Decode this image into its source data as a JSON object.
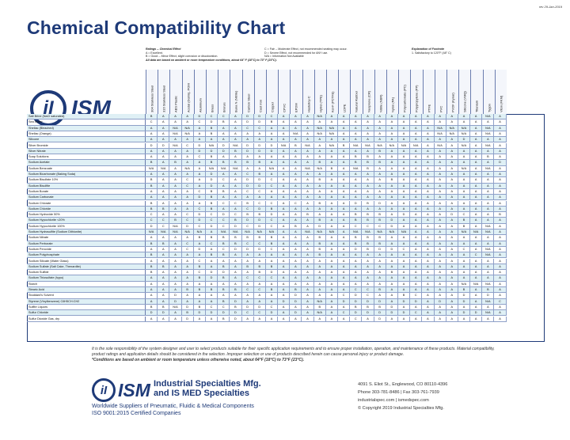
{
  "header": {
    "revision": "rev 29-Jan-2019",
    "title": "Chemical Compatibility Chart"
  },
  "ratings": {
    "title": "Ratings -- Chemical Effect",
    "lines": [
      "A = Excellent.",
      "B = Good -- Minor Effect, slight corrosion or discoloration.",
      "All data are based on ambient or room temperature conditions, about 64° F (18°C) to 73° F (23°C)."
    ],
    "lines2": [
      "C = Fair -- Moderate Effect, not recommended seating may occur.",
      "D = Severe Effect, not recommended for ANY use.",
      "N/A = Information Not Available"
    ]
  },
  "explanation": {
    "title": "Explanation of Footnote",
    "lines": [
      "1. Satisfactory to 120°F (48° C)"
    ]
  },
  "logo": {
    "mark": "iI",
    "text": "ISM"
  },
  "columns": [
    "304 Stainless Steel",
    "316 Stainless Steel",
    "ABS Plastic",
    "Acetal (Delrin), POM",
    "Aluminum",
    "Brass",
    "Bronze",
    "Buna N (Nitrile)",
    "Carbon Steel",
    "Cast Iron",
    "Copper",
    "CPVC",
    "EPDM",
    "Hastelloy-C",
    "Hytrel (TPE)",
    "Kel-F (PCTFE)",
    "LDPE",
    "Natural Rubber",
    "Neoprene (CR)",
    "Nitrile (NBR)",
    "Nylon (PA)",
    "Polycarbonate (PC)",
    "Polypropylene (PP)",
    "PTFE",
    "PVC",
    "PVDF (Kynar)",
    "Silicone (VMQ)",
    "Titanium",
    "Tygon",
    "Viton (FKM)"
  ],
  "rows": [
    {
      "name": "Salt Brine (NaCl saturated)",
      "v": [
        "B",
        "A",
        "A",
        "A",
        "D",
        "C",
        "C",
        "A",
        "D",
        "D",
        "C",
        "A",
        "A",
        "A",
        "N/A",
        "A",
        "A",
        "A",
        "A",
        "A",
        "A",
        "A",
        "A",
        "A",
        "A",
        "A",
        "A",
        "A",
        "N/A",
        "A"
      ]
    },
    {
      "name": "Sea Water",
      "v": [
        "C",
        "A",
        "A",
        "A",
        "C",
        "D",
        "B",
        "A",
        "D",
        "D",
        "B",
        "A",
        "A",
        "A",
        "A",
        "A",
        "A",
        "A",
        "A",
        "A",
        "A",
        "A",
        "A",
        "A",
        "A",
        "A",
        "A",
        "A",
        "A",
        "A"
      ]
    },
    {
      "name": "Shellac (Bleached)",
      "v": [
        "A",
        "A",
        "N/A",
        "N/A",
        "A",
        "B",
        "A",
        "A",
        "C",
        "C",
        "A",
        "A",
        "A",
        "A",
        "N/A",
        "N/A",
        "A",
        "A",
        "A",
        "A",
        "A",
        "A",
        "A",
        "A",
        "N/A",
        "N/A",
        "N/A",
        "A",
        "N/A",
        "A"
      ]
    },
    {
      "name": "Shellac (Orange)",
      "v": [
        "A",
        "A",
        "N/A",
        "N/A",
        "A",
        "B",
        "A",
        "A",
        "A",
        "A",
        "A",
        "A",
        "N/A",
        "A",
        "N/A",
        "N/A",
        "A",
        "A",
        "A",
        "A",
        "A",
        "A",
        "A",
        "A",
        "N/A",
        "N/A",
        "N/A",
        "A",
        "N/A",
        "A"
      ]
    },
    {
      "name": "Silicone",
      "v": [
        "A",
        "A",
        "A",
        "A",
        "A",
        "A",
        "A",
        "A",
        "A",
        "A",
        "A",
        "A",
        "A",
        "A",
        "A",
        "A",
        "A",
        "A",
        "A",
        "A",
        "A",
        "A",
        "A",
        "A",
        "A",
        "A",
        "D",
        "A",
        "A",
        "A"
      ]
    },
    {
      "name": "Silver Bromide",
      "v": [
        "D",
        "D",
        "N/A",
        "C",
        "D",
        "N/A",
        "D",
        "N/A",
        "D",
        "D",
        "D",
        "N/A",
        "B",
        "N/A",
        "A",
        "N/A",
        "B",
        "N/A",
        "N/A",
        "N/A",
        "N/A",
        "N/A",
        "N/A",
        "A",
        "N/A",
        "A",
        "N/A",
        "A",
        "N/A",
        "A"
      ]
    },
    {
      "name": "Silver Nitrate",
      "v": [
        "A",
        "A",
        "A",
        "A",
        "D",
        "D",
        "D",
        "B",
        "D",
        "D",
        "D",
        "A",
        "A",
        "A",
        "A",
        "A",
        "A",
        "A",
        "A",
        "B",
        "A",
        "A",
        "A",
        "A",
        "A",
        "A",
        "A",
        "A",
        "A",
        "A"
      ]
    },
    {
      "name": "Soap Solutions",
      "v": [
        "A",
        "A",
        "A",
        "A",
        "C",
        "B",
        "A",
        "A",
        "A",
        "A",
        "A",
        "A",
        "A",
        "A",
        "A",
        "A",
        "A",
        "B",
        "B",
        "A",
        "A",
        "A",
        "A",
        "A",
        "A",
        "A",
        "A",
        "A",
        "B",
        "A"
      ]
    },
    {
      "name": "Sodium Acetate",
      "v": [
        "B",
        "A",
        "B",
        "A",
        "A",
        "B",
        "B",
        "B",
        "B",
        "B",
        "A",
        "A",
        "A",
        "A",
        "B",
        "A",
        "A",
        "B",
        "B",
        "B",
        "A",
        "A",
        "A",
        "A",
        "A",
        "A",
        "A",
        "A",
        "A",
        "D"
      ]
    },
    {
      "name": "Sodium Benzoate",
      "v": [
        "N/A",
        "N/A",
        "A",
        "N/A",
        "A",
        "N/A",
        "N/A",
        "N/A",
        "A",
        "A",
        "N/A",
        "A",
        "A",
        "N/A",
        "N/A",
        "B",
        "A",
        "N/A",
        "B",
        "A",
        "A",
        "A",
        "A",
        "A",
        "A",
        "A",
        "N/A",
        "A",
        "N/A",
        "A"
      ]
    },
    {
      "name": "Sodium Bicarbonate (Baking Soda)",
      "v": [
        "A",
        "A",
        "A",
        "A",
        "A",
        "D",
        "A",
        "A",
        "C",
        "B",
        "A",
        "A",
        "A",
        "A",
        "A",
        "A",
        "A",
        "A",
        "A",
        "A",
        "A",
        "A",
        "A",
        "A",
        "A",
        "A",
        "A",
        "A",
        "A",
        "A"
      ]
    },
    {
      "name": "Sodium Bisulfate 10%",
      "v": [
        "B",
        "A",
        "A",
        "C",
        "A",
        "D",
        "C",
        "A",
        "D",
        "D",
        "C",
        "A",
        "A",
        "A",
        "B",
        "A",
        "A",
        "A",
        "A",
        "A",
        "B",
        "A",
        "A",
        "A",
        "A",
        "A",
        "A",
        "A",
        "A",
        "A"
      ]
    },
    {
      "name": "Sodium Bisulfite",
      "v": [
        "B",
        "A",
        "A",
        "C",
        "A",
        "D",
        "A",
        "A",
        "D",
        "D",
        "C",
        "A",
        "A",
        "A",
        "A",
        "A",
        "A",
        "A",
        "A",
        "A",
        "A",
        "A",
        "A",
        "A",
        "A",
        "A",
        "A",
        "A",
        "A",
        "A"
      ]
    },
    {
      "name": "Sodium Borate",
      "v": [
        "A",
        "A",
        "A",
        "A",
        "C",
        "B",
        "B",
        "A",
        "C",
        "C",
        "A",
        "A",
        "A",
        "A",
        "A",
        "A",
        "A",
        "A",
        "A",
        "A",
        "A",
        "A",
        "A",
        "A",
        "A",
        "A",
        "A",
        "A",
        "A",
        "A"
      ]
    },
    {
      "name": "Sodium Carbonate",
      "v": [
        "A",
        "A",
        "A",
        "A",
        "D",
        "B",
        "A",
        "A",
        "A",
        "A",
        "A",
        "A",
        "A",
        "A",
        "A",
        "A",
        "A",
        "A",
        "A",
        "A",
        "A",
        "A",
        "A",
        "A",
        "A",
        "A",
        "A",
        "A",
        "A",
        "A"
      ]
    },
    {
      "name": "Sodium Chlorate",
      "v": [
        "B",
        "A",
        "A",
        "A",
        "A",
        "B",
        "C",
        "C",
        "B",
        "C",
        "C",
        "A",
        "C",
        "A",
        "B",
        "A",
        "A",
        "D",
        "B",
        "D",
        "A",
        "A",
        "A",
        "A",
        "A",
        "A",
        "A",
        "A",
        "A",
        "A"
      ]
    },
    {
      "name": "Sodium Chloride",
      "v": [
        "B",
        "B",
        "A",
        "A",
        "C",
        "B",
        "A",
        "A",
        "C",
        "D",
        "B",
        "A",
        "A",
        "A",
        "A",
        "A",
        "A",
        "A",
        "A",
        "A",
        "A",
        "A",
        "A",
        "A",
        "A",
        "A",
        "A",
        "A",
        "A",
        "A"
      ]
    },
    {
      "name": "Sodium Hydroxide 50%",
      "v": [
        "C",
        "A",
        "A",
        "C",
        "D",
        "C",
        "D",
        "C",
        "B",
        "B",
        "D",
        "A",
        "A",
        "B",
        "A",
        "A",
        "A",
        "B",
        "B",
        "B",
        "A",
        "D",
        "A",
        "A",
        "A",
        "D",
        "C",
        "A",
        "A",
        "B"
      ]
    },
    {
      "name": "Sodium Hypochlorite <20%",
      "v": [
        "C",
        "C",
        "B",
        "C",
        "D",
        "C",
        "C",
        "B",
        "D",
        "D",
        "C",
        "A",
        "A",
        "A",
        "B",
        "A",
        "A",
        "B",
        "B",
        "B",
        "D",
        "A",
        "A",
        "A",
        "A",
        "A",
        "B",
        "A",
        "A",
        "A"
      ]
    },
    {
      "name": "Sodium Hypochlorite 100%",
      "v": [
        "D",
        "C",
        "N/A",
        "D",
        "C",
        "D",
        "C",
        "D",
        "C",
        "D",
        "C",
        "A",
        "B",
        "A",
        "D",
        "A",
        "A",
        "C",
        "C",
        "C",
        "D",
        "A",
        "A",
        "A",
        "A",
        "A",
        "B",
        "A",
        "N/A",
        "A"
      ]
    },
    {
      "name": "Sodium Hydrosulfite (Sodium Dithionite)",
      "v": [
        "N/A",
        "N/A",
        "N/A",
        "N/A",
        "N/A",
        "A",
        "N/A",
        "N/A",
        "N/A",
        "N/A",
        "N/A",
        "A",
        "A",
        "N/A",
        "N/A",
        "N/A",
        "A",
        "N/A",
        "N/A",
        "N/A",
        "N/A",
        "N/A",
        "A",
        "A",
        "A",
        "A",
        "N/A",
        "N/A",
        "N/A",
        "A"
      ]
    },
    {
      "name": "Sodium Nitrate",
      "v": [
        "A",
        "A",
        "A",
        "A",
        "B",
        "B",
        "B",
        "B",
        "B",
        "B",
        "B",
        "A",
        "A",
        "A",
        "B",
        "A",
        "A",
        "B",
        "B",
        "B",
        "A",
        "A",
        "A",
        "A",
        "A",
        "A",
        "A",
        "A",
        "A",
        "A"
      ]
    },
    {
      "name": "Sodium Perborate",
      "v": [
        "B",
        "B",
        "A",
        "C",
        "A",
        "C",
        "B",
        "B",
        "C",
        "C",
        "B",
        "A",
        "A",
        "A",
        "B",
        "A",
        "A",
        "B",
        "B",
        "B",
        "A",
        "A",
        "A",
        "A",
        "A",
        "A",
        "A",
        "A",
        "A",
        "A"
      ]
    },
    {
      "name": "Sodium Peroxide",
      "v": [
        "A",
        "A",
        "A",
        "C",
        "D",
        "A",
        "C",
        "D",
        "D",
        "D",
        "C",
        "A",
        "A",
        "A",
        "B",
        "A",
        "A",
        "D",
        "B",
        "D",
        "D",
        "C",
        "A",
        "A",
        "A",
        "A",
        "C",
        "A",
        "N/A",
        "A"
      ]
    },
    {
      "name": "Sodium Polyphosphate",
      "v": [
        "B",
        "A",
        "A",
        "A",
        "A",
        "B",
        "B",
        "A",
        "A",
        "A",
        "A",
        "A",
        "A",
        "A",
        "B",
        "A",
        "A",
        "A",
        "A",
        "A",
        "A",
        "A",
        "A",
        "A",
        "A",
        "A",
        "A",
        "C",
        "N/A",
        "A"
      ]
    },
    {
      "name": "Sodium Silicate (Water Glass)",
      "v": [
        "A",
        "A",
        "A",
        "A",
        "C",
        "A",
        "A",
        "A",
        "A",
        "A",
        "A",
        "A",
        "A",
        "A",
        "A",
        "A",
        "A",
        "A",
        "A",
        "A",
        "A",
        "A",
        "A",
        "A",
        "A",
        "A",
        "A",
        "A",
        "A",
        "A"
      ]
    },
    {
      "name": "Sodium Sulfate (Salt Cake, Thenardite)",
      "v": [
        "B",
        "B",
        "A",
        "A",
        "B",
        "A",
        "B",
        "A",
        "B",
        "B",
        "B",
        "A",
        "A",
        "A",
        "A",
        "A",
        "A",
        "A",
        "A",
        "A",
        "A",
        "A",
        "A",
        "A",
        "A",
        "A",
        "A",
        "A",
        "A",
        "A"
      ]
    },
    {
      "name": "Sodium Sulfide",
      "v": [
        "B",
        "A",
        "A",
        "A",
        "C",
        "D",
        "D",
        "A",
        "A",
        "B",
        "D",
        "A",
        "A",
        "A",
        "A",
        "A",
        "A",
        "A",
        "A",
        "A",
        "B",
        "A",
        "A",
        "A",
        "A",
        "A",
        "A",
        "A",
        "A",
        "A"
      ]
    },
    {
      "name": "Sodium Thiosulfate (hypo)",
      "v": [
        "A",
        "A",
        "A",
        "A",
        "B",
        "D",
        "B",
        "A",
        "C",
        "C",
        "C",
        "A",
        "A",
        "A",
        "A",
        "A",
        "A",
        "A",
        "A",
        "A",
        "A",
        "A",
        "A",
        "A",
        "A",
        "A",
        "A",
        "A",
        "A",
        "A"
      ]
    },
    {
      "name": "Starch",
      "v": [
        "A",
        "A",
        "A",
        "A",
        "A",
        "A",
        "A",
        "A",
        "A",
        "A",
        "A",
        "A",
        "A",
        "A",
        "A",
        "A",
        "A",
        "A",
        "A",
        "A",
        "A",
        "A",
        "A",
        "A",
        "A",
        "A",
        "N/A",
        "N/A",
        "N/A",
        "A"
      ]
    },
    {
      "name": "Stearic Acid",
      "v": [
        "A",
        "A",
        "A",
        "B",
        "B",
        "B",
        "B",
        "B",
        "C",
        "C",
        "B",
        "A",
        "B",
        "A",
        "A",
        "A",
        "A",
        "C",
        "C",
        "B",
        "A",
        "A",
        "A",
        "A",
        "A",
        "A",
        "B",
        "A",
        "B",
        "A"
      ]
    },
    {
      "name": "Stoddard's Solvent",
      "v": [
        "A",
        "A",
        "D",
        "A",
        "A",
        "A",
        "A",
        "A",
        "A",
        "A",
        "A",
        "A",
        "D",
        "A",
        "A",
        "A",
        "C",
        "D",
        "C",
        "A",
        "A",
        "B",
        "C",
        "A",
        "A",
        "A",
        "D",
        "A",
        "D",
        "A"
      ]
    },
    {
      "name": "Styrene (Vinylbenzene) C6H5CH:CH2",
      "v": [
        "A",
        "A",
        "D",
        "A",
        "A",
        "A",
        "B",
        "D",
        "A",
        "A",
        "A",
        "D",
        "D",
        "A",
        "N/A",
        "A",
        "D",
        "D",
        "D",
        "D",
        "A",
        "D",
        "D",
        "A",
        "D",
        "A",
        "D",
        "A",
        "N/A",
        "C"
      ]
    },
    {
      "name": "Sulfite Liquors",
      "v": [
        "B",
        "B",
        "N/A",
        "D",
        "B",
        "C",
        "C",
        "B",
        "D",
        "D",
        "C",
        "A",
        "A",
        "A",
        "B",
        "A",
        "A",
        "B",
        "B",
        "B",
        "D",
        "A",
        "A",
        "A",
        "A",
        "A",
        "A",
        "A",
        "A",
        "A"
      ]
    },
    {
      "name": "Sulfur Chloride",
      "v": [
        "D",
        "D",
        "A",
        "B",
        "D",
        "D",
        "D",
        "D",
        "C",
        "C",
        "D",
        "A",
        "D",
        "A",
        "N/A",
        "A",
        "C",
        "D",
        "D",
        "D",
        "D",
        "D",
        "C",
        "A",
        "A",
        "A",
        "D",
        "D",
        "N/A",
        "A"
      ]
    },
    {
      "name": "Sulfur Dioxide Gas, dry",
      "v": [
        "A",
        "A",
        "A",
        "D",
        "A",
        "A",
        "B",
        "D",
        "A",
        "A",
        "A",
        "A",
        "A",
        "A",
        "A",
        "A",
        "A",
        "C",
        "A",
        "D",
        "A",
        "A",
        "A",
        "A",
        "A",
        "A",
        "A",
        "A",
        "A",
        "A"
      ]
    }
  ],
  "disclaimer": {
    "text": "It is the sole responsibility of the system designer and user to select products suitable for their specific application requirements and to ensure proper installation, operation, and maintenance of these products. Material compatibility, product ratings and application details should be considered in the selection. Improper selection or use of products described herein can cause personal injury or product damage.",
    "conditions": "*Conditions are based on ambient or room temperature unless otherwise noted, about 64°F (18°C) to 73°F (23°C)."
  },
  "footer": {
    "logo_mark": "iI",
    "logo_text": "ISM",
    "company_line1": "Industrial Specialties Mfg.",
    "company_line2": "and IS MED Specialties",
    "tagline1": "Worldwide Suppliers of Pneumatic, Fluidic & Medical Components",
    "tagline2": "ISO 9001:2015 Certified Companies",
    "address": "4091 S. Eliot St., Englewood, CO 80110-4396",
    "phone": "Phone 303-781-8486 | Fax 303-761-7939",
    "web": "industrialspec.com | ismedspec.com",
    "copyright": "© Copyright 2019 Industrial Specialties Mfg."
  }
}
